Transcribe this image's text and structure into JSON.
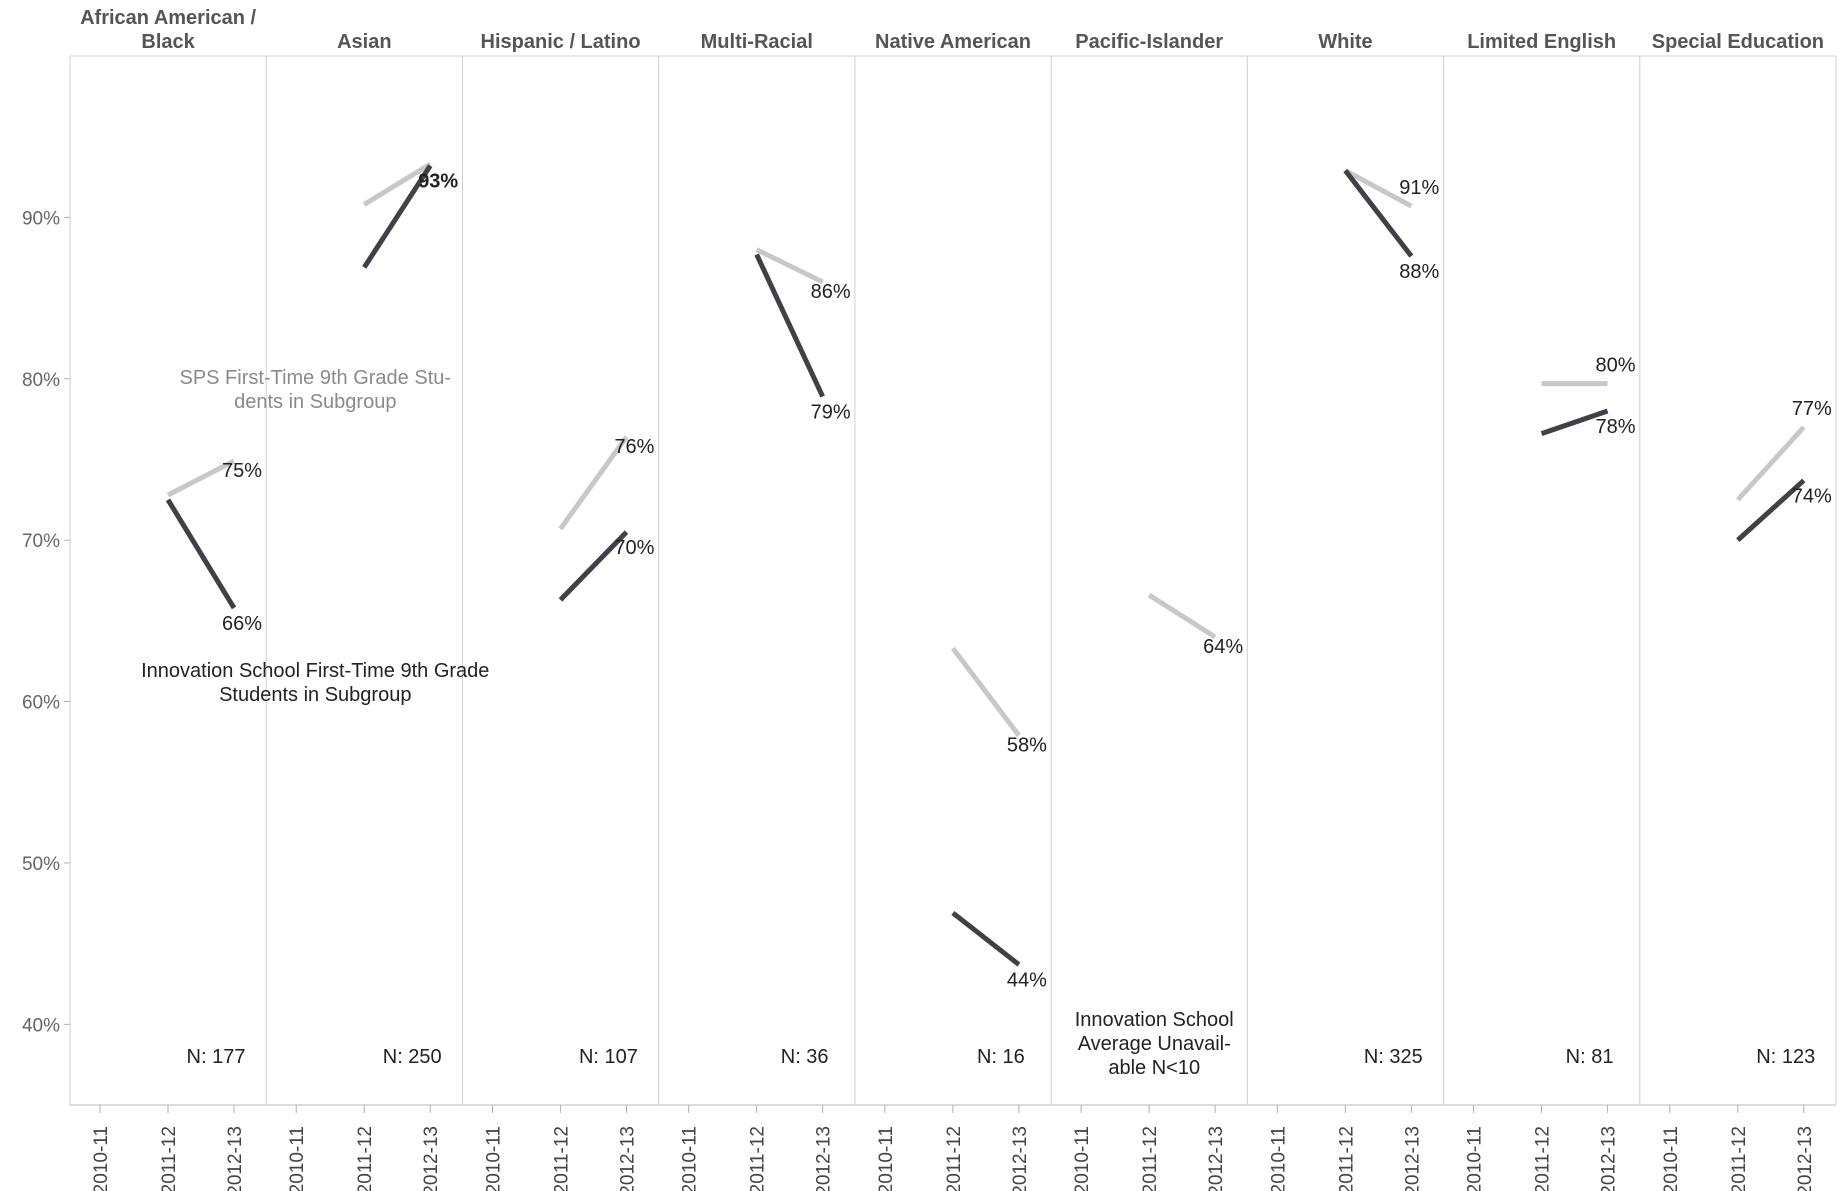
{
  "chart_data": {
    "type": "line",
    "panels": [
      {
        "label_lines": [
          "African American /",
          "Black"
        ],
        "n": "N: 177",
        "innovation": [
          null,
          72.5,
          65.8
        ],
        "sps": [
          null,
          72.8,
          74.9
        ],
        "labels": {
          "innovation": "66%",
          "sps": "75%"
        }
      },
      {
        "label_lines": [
          "Asian"
        ],
        "n": "N: 250",
        "innovation": [
          null,
          86.9,
          93.2
        ],
        "sps": [
          null,
          90.8,
          93.3
        ],
        "labels": {
          "innovation": "93%",
          "sps": null
        }
      },
      {
        "label_lines": [
          "Hispanic / Latino"
        ],
        "n": "N: 107",
        "innovation": [
          null,
          66.3,
          70.5
        ],
        "sps": [
          null,
          70.7,
          76.4
        ],
        "labels": {
          "innovation": "70%",
          "sps": "76%"
        }
      },
      {
        "label_lines": [
          "Multi-Racial"
        ],
        "n": "N: 36",
        "innovation": [
          null,
          87.7,
          78.9
        ],
        "sps": [
          null,
          88.0,
          86.0
        ],
        "labels": {
          "innovation": "79%",
          "sps": "86%"
        }
      },
      {
        "label_lines": [
          "Native American"
        ],
        "n": "N: 16",
        "innovation": [
          null,
          46.9,
          43.7
        ],
        "sps": [
          null,
          63.3,
          57.9
        ],
        "labels": {
          "innovation": "44%",
          "sps": "58%"
        }
      },
      {
        "label_lines": [
          "Pacific-Islander"
        ],
        "n": null,
        "innovation": [
          null,
          null,
          null
        ],
        "sps": [
          null,
          66.6,
          64.0
        ],
        "labels": {
          "innovation": null,
          "sps": "64%"
        }
      },
      {
        "label_lines": [
          "White"
        ],
        "n": "N: 325",
        "innovation": [
          null,
          92.9,
          87.6
        ],
        "sps": [
          null,
          92.9,
          90.7
        ],
        "labels": {
          "innovation": "88%",
          "sps": "91%"
        }
      },
      {
        "label_lines": [
          "Limited English"
        ],
        "n": "N: 81",
        "innovation": [
          null,
          76.6,
          78.0
        ],
        "sps": [
          null,
          79.7,
          79.7
        ],
        "labels": {
          "innovation": "78%",
          "sps": "80%"
        }
      },
      {
        "label_lines": [
          "Special Education"
        ],
        "n": "N: 123",
        "innovation": [
          null,
          70.0,
          73.7
        ],
        "sps": [
          null,
          72.5,
          77.0
        ],
        "labels": {
          "innovation": "74%",
          "sps": "77%"
        }
      }
    ],
    "x_categories": [
      "2010-11",
      "2011-12",
      "2012-13"
    ],
    "y_ticks": [
      {
        "v": 40,
        "label": "40%"
      },
      {
        "v": 50,
        "label": "50%"
      },
      {
        "v": 60,
        "label": "60%"
      },
      {
        "v": 70,
        "label": "70%"
      },
      {
        "v": 80,
        "label": "80%"
      },
      {
        "v": 90,
        "label": "90%"
      }
    ],
    "ylim": [
      35,
      100
    ],
    "series": [
      {
        "key": "sps",
        "name": "SPS First-Time 9th Grade Students in Subgroup",
        "color": "#c8c8c8"
      },
      {
        "key": "innovation",
        "name": "Innovation School First-Time 9th Grade Students in Subgroup",
        "color": "#404048"
      }
    ],
    "annotations": {
      "sps_lines": [
        "SPS First-Time 9th Grade Stu-",
        "dents in Subgroup"
      ],
      "innovation_lines": [
        "Innovation School First-Time 9th Grade",
        "Students in Subgroup"
      ],
      "unavailable_lines": [
        "Innovation School",
        "Average Unavail-",
        "able N<10"
      ]
    },
    "grid": false
  }
}
